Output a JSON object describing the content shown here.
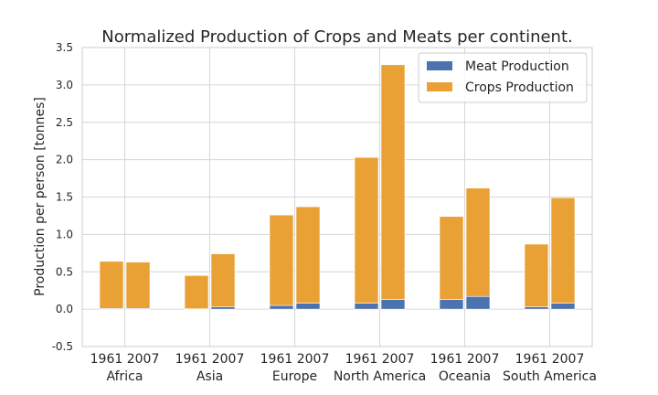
{
  "chart_data": {
    "type": "bar",
    "stacked": true,
    "title": "Normalized Production of Crops and Meats per continent.",
    "xlabel": "",
    "ylabel": "Production per person [tonnes]",
    "ylim": [
      -0.5,
      3.5
    ],
    "yticks": [
      "-0.5",
      "0.0",
      "0.5",
      "1.0",
      "1.5",
      "2.0",
      "2.5",
      "3.0",
      "3.5"
    ],
    "grid": true,
    "legend_position": "top-right",
    "groups": [
      "Africa",
      "Asia",
      "Europe",
      "North America",
      "Oceania",
      "South America"
    ],
    "years": [
      "1961",
      "2007"
    ],
    "colors": {
      "meat": "#4c72b0",
      "crops": "#e9a135",
      "grid": "#d6d6d6",
      "axis": "#cccccc"
    },
    "series": [
      {
        "name": "Meat Production",
        "key": "meat",
        "values": [
          [
            0.01,
            0.01
          ],
          [
            0.005,
            0.03
          ],
          [
            0.05,
            0.08
          ],
          [
            0.08,
            0.13
          ],
          [
            0.13,
            0.17
          ],
          [
            0.03,
            0.08
          ]
        ]
      },
      {
        "name": "Crops Production",
        "key": "crops",
        "values": [
          [
            0.63,
            0.62
          ],
          [
            0.445,
            0.71
          ],
          [
            1.21,
            1.29
          ],
          [
            1.95,
            3.14
          ],
          [
            1.11,
            1.45
          ],
          [
            0.84,
            1.41
          ]
        ]
      }
    ]
  }
}
